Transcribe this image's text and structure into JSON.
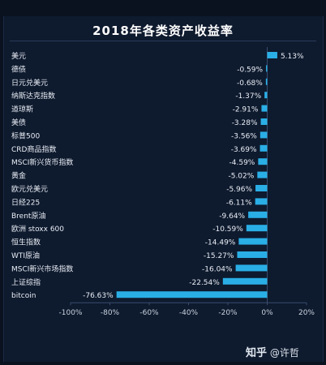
{
  "chart_data": {
    "type": "bar",
    "orientation": "horizontal",
    "title": "2018年各类资产收益率",
    "categories": [
      "美元",
      "德债",
      "日元兑美元",
      "纳斯达克指数",
      "道琼斯",
      "美债",
      "标普500",
      "CRD商品指数",
      "MSCI新兴货币指数",
      "黄金",
      "欧元兑美元",
      "日经225",
      "Brent原油",
      "欧洲 stoxx 600",
      "恒生指数",
      "WTI原油",
      "MSCI新兴市场指数",
      "上证综指",
      "bitcoin"
    ],
    "values": [
      5.13,
      -0.59,
      -0.68,
      -1.37,
      -2.91,
      -3.28,
      -3.56,
      -3.69,
      -4.59,
      -5.02,
      -5.96,
      -6.11,
      -9.64,
      -10.59,
      -14.49,
      -15.27,
      -16.04,
      -22.54,
      -76.63
    ],
    "value_labels": [
      "5.13%",
      "-0.59%",
      "-0.68%",
      "-1.37%",
      "-2.91%",
      "-3.28%",
      "-3.56%",
      "-3.69%",
      "-4.59%",
      "-5.02%",
      "-5.96%",
      "-6.11%",
      "-9.64%",
      "-10.59%",
      "-14.49%",
      "-15.27%",
      "-16.04%",
      "-22.54%",
      "-76.63%"
    ],
    "xlim": [
      -100,
      20
    ],
    "x_ticks": [
      -100,
      -80,
      -60,
      -40,
      -20,
      0,
      20
    ],
    "x_tick_labels": [
      "-100%",
      "-80%",
      "-60%",
      "-40%",
      "-20%",
      "0%",
      "20%"
    ],
    "bar_color": "#2aaee6",
    "grid": false,
    "legend": "none"
  },
  "watermark": {
    "site": "知乎",
    "at": "@",
    "author": "许哲"
  }
}
